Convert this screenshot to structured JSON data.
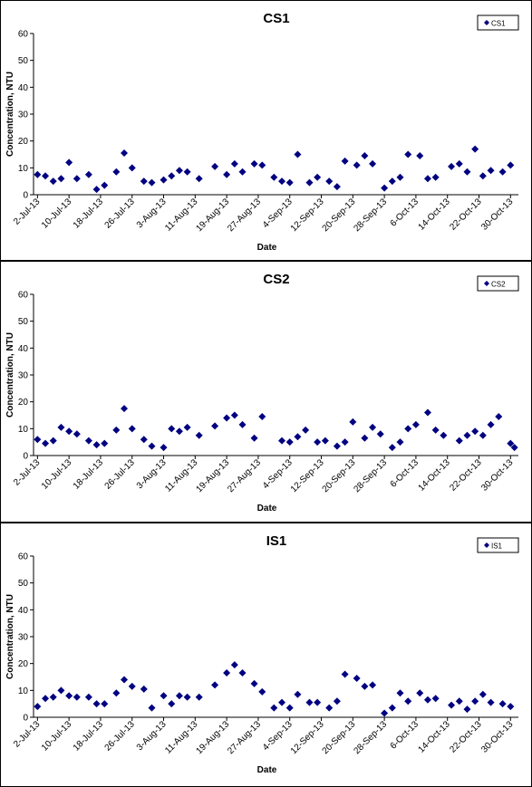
{
  "chart_data": [
    {
      "type": "scatter",
      "title": "CS1",
      "x_label": "Date",
      "y_label": "Concentration, NTU",
      "legend": "upper right",
      "grid": false,
      "x": [
        "2013-07-02",
        "2013-07-04",
        "2013-07-06",
        "2013-07-08",
        "2013-07-10",
        "2013-07-12",
        "2013-07-15",
        "2013-07-17",
        "2013-07-19",
        "2013-07-22",
        "2013-07-24",
        "2013-07-26",
        "2013-07-29",
        "2013-07-31",
        "2013-08-03",
        "2013-08-05",
        "2013-08-07",
        "2013-08-09",
        "2013-08-12",
        "2013-08-16",
        "2013-08-19",
        "2013-08-21",
        "2013-08-23",
        "2013-08-26",
        "2013-08-28",
        "2013-08-31",
        "2013-09-02",
        "2013-09-04",
        "2013-09-06",
        "2013-09-09",
        "2013-09-11",
        "2013-09-14",
        "2013-09-16",
        "2013-09-18",
        "2013-09-21",
        "2013-09-23",
        "2013-09-25",
        "2013-09-28",
        "2013-09-30",
        "2013-10-02",
        "2013-10-04",
        "2013-10-07",
        "2013-10-09",
        "2013-10-11",
        "2013-10-15",
        "2013-10-17",
        "2013-10-19",
        "2013-10-21",
        "2013-10-23",
        "2013-10-25",
        "2013-10-28",
        "2013-10-30"
      ],
      "series": [
        {
          "name": "CS1",
          "color": "#000080",
          "values": [
            7.5,
            7,
            5,
            6,
            12,
            6,
            7.5,
            2,
            3.5,
            8.5,
            15.5,
            10,
            5,
            4.5,
            5.5,
            7,
            9,
            8.5,
            6,
            10.5,
            7.5,
            11.5,
            8.5,
            11.5,
            11,
            6.5,
            5,
            4.5,
            15,
            4.5,
            6.5,
            5,
            3,
            12.5,
            11,
            14.5,
            11.5,
            2.5,
            5,
            6.5,
            15,
            14.5,
            6,
            6.5,
            10.5,
            11.5,
            8.5,
            17,
            7,
            9,
            8.5,
            11
          ]
        }
      ],
      "xlim": [
        "2013-07-01",
        "2013-11-01"
      ],
      "xticks": [
        {
          "value": "2013-07-02",
          "label": "2-Jul-13"
        },
        {
          "value": "2013-07-10",
          "label": "10-Jul-13"
        },
        {
          "value": "2013-07-18",
          "label": "18-Jul-13"
        },
        {
          "value": "2013-07-26",
          "label": "26-Jul-13"
        },
        {
          "value": "2013-08-03",
          "label": "3-Aug-13"
        },
        {
          "value": "2013-08-11",
          "label": "11-Aug-13"
        },
        {
          "value": "2013-08-19",
          "label": "19-Aug-13"
        },
        {
          "value": "2013-08-27",
          "label": "27-Aug-13"
        },
        {
          "value": "2013-09-04",
          "label": "4-Sep-13"
        },
        {
          "value": "2013-09-12",
          "label": "12-Sep-13"
        },
        {
          "value": "2013-09-20",
          "label": "20-Sep-13"
        },
        {
          "value": "2013-09-28",
          "label": "28-Sep-13"
        },
        {
          "value": "2013-10-06",
          "label": "6-Oct-13"
        },
        {
          "value": "2013-10-14",
          "label": "14-Oct-13"
        },
        {
          "value": "2013-10-22",
          "label": "22-Oct-13"
        },
        {
          "value": "2013-10-30",
          "label": "30-Oct-13"
        }
      ],
      "ylim": [
        0,
        60
      ],
      "yticks": [
        0,
        10,
        20,
        30,
        40,
        50,
        60
      ]
    },
    {
      "type": "scatter",
      "title": "CS2",
      "x_label": "Date",
      "y_label": "Concentration, NTU",
      "legend": "upper right",
      "grid": false,
      "x": [
        "2013-07-02",
        "2013-07-04",
        "2013-07-06",
        "2013-07-08",
        "2013-07-10",
        "2013-07-12",
        "2013-07-15",
        "2013-07-17",
        "2013-07-19",
        "2013-07-22",
        "2013-07-24",
        "2013-07-26",
        "2013-07-29",
        "2013-07-31",
        "2013-08-03",
        "2013-08-05",
        "2013-08-07",
        "2013-08-09",
        "2013-08-12",
        "2013-08-16",
        "2013-08-19",
        "2013-08-21",
        "2013-08-23",
        "2013-08-26",
        "2013-08-28",
        "2013-09-02",
        "2013-09-04",
        "2013-09-06",
        "2013-09-08",
        "2013-09-11",
        "2013-09-13",
        "2013-09-16",
        "2013-09-18",
        "2013-09-20",
        "2013-09-23",
        "2013-09-25",
        "2013-09-27",
        "2013-09-30",
        "2013-10-02",
        "2013-10-04",
        "2013-10-06",
        "2013-10-09",
        "2013-10-11",
        "2013-10-13",
        "2013-10-17",
        "2013-10-19",
        "2013-10-21",
        "2013-10-23",
        "2013-10-25",
        "2013-10-27",
        "2013-10-30",
        "2013-10-31"
      ],
      "series": [
        {
          "name": "CS2",
          "color": "#000080",
          "values": [
            6,
            4.5,
            5.5,
            10.5,
            9,
            8,
            5.5,
            4,
            4.5,
            9.5,
            17.5,
            10,
            6,
            3.5,
            3,
            10,
            9,
            10.5,
            7.5,
            11,
            14,
            15,
            11.5,
            6.5,
            14.5,
            5.5,
            5,
            7,
            9.5,
            5,
            5.5,
            3.5,
            5,
            12.5,
            6.5,
            10.5,
            8,
            3,
            5,
            10,
            11.5,
            16,
            9.5,
            7.5,
            5.5,
            7.5,
            9,
            7.5,
            11.5,
            14.5,
            4.5,
            3
          ]
        }
      ],
      "xlim": [
        "2013-07-01",
        "2013-11-01"
      ],
      "xticks": [
        {
          "value": "2013-07-02",
          "label": "2-Jul-13"
        },
        {
          "value": "2013-07-10",
          "label": "10-Jul-13"
        },
        {
          "value": "2013-07-18",
          "label": "18-Jul-13"
        },
        {
          "value": "2013-07-26",
          "label": "26-Jul-13"
        },
        {
          "value": "2013-08-03",
          "label": "3-Aug-13"
        },
        {
          "value": "2013-08-11",
          "label": "11-Aug-13"
        },
        {
          "value": "2013-08-19",
          "label": "19-Aug-13"
        },
        {
          "value": "2013-08-27",
          "label": "27-Aug-13"
        },
        {
          "value": "2013-09-04",
          "label": "4-Sep-13"
        },
        {
          "value": "2013-09-12",
          "label": "12-Sep-13"
        },
        {
          "value": "2013-09-20",
          "label": "20-Sep-13"
        },
        {
          "value": "2013-09-28",
          "label": "28-Sep-13"
        },
        {
          "value": "2013-10-06",
          "label": "6-Oct-13"
        },
        {
          "value": "2013-10-14",
          "label": "14-Oct-13"
        },
        {
          "value": "2013-10-22",
          "label": "22-Oct-13"
        },
        {
          "value": "2013-10-30",
          "label": "30-Oct-13"
        }
      ],
      "ylim": [
        0,
        60
      ],
      "yticks": [
        0,
        10,
        20,
        30,
        40,
        50,
        60
      ]
    },
    {
      "type": "scatter",
      "title": "IS1",
      "x_label": "Date",
      "y_label": "Concentration, NTU",
      "legend": "upper right",
      "grid": false,
      "x": [
        "2013-07-02",
        "2013-07-04",
        "2013-07-06",
        "2013-07-08",
        "2013-07-10",
        "2013-07-12",
        "2013-07-15",
        "2013-07-17",
        "2013-07-19",
        "2013-07-22",
        "2013-07-24",
        "2013-07-26",
        "2013-07-29",
        "2013-07-31",
        "2013-08-03",
        "2013-08-05",
        "2013-08-07",
        "2013-08-09",
        "2013-08-12",
        "2013-08-16",
        "2013-08-19",
        "2013-08-21",
        "2013-08-23",
        "2013-08-26",
        "2013-08-28",
        "2013-08-31",
        "2013-09-02",
        "2013-09-04",
        "2013-09-06",
        "2013-09-09",
        "2013-09-11",
        "2013-09-14",
        "2013-09-16",
        "2013-09-18",
        "2013-09-21",
        "2013-09-23",
        "2013-09-25",
        "2013-09-28",
        "2013-09-30",
        "2013-10-02",
        "2013-10-04",
        "2013-10-07",
        "2013-10-09",
        "2013-10-11",
        "2013-10-15",
        "2013-10-17",
        "2013-10-19",
        "2013-10-21",
        "2013-10-23",
        "2013-10-25",
        "2013-10-28",
        "2013-10-30"
      ],
      "series": [
        {
          "name": "IS1",
          "color": "#000080",
          "values": [
            4,
            7,
            7.5,
            10,
            8,
            7.5,
            7.5,
            5,
            5,
            9,
            14,
            11.5,
            10.5,
            3.5,
            8,
            5,
            8,
            7.5,
            7.5,
            12,
            16.5,
            19.5,
            16.5,
            12.5,
            9.5,
            3.5,
            5.5,
            3.5,
            8.5,
            5.5,
            5.5,
            3.5,
            6,
            16,
            14.5,
            11.5,
            12,
            1.5,
            3.5,
            9,
            6,
            9,
            6.5,
            7,
            4.5,
            6,
            3,
            6,
            8.5,
            5.5,
            5,
            4
          ]
        }
      ],
      "xlim": [
        "2013-07-01",
        "2013-11-01"
      ],
      "xticks": [
        {
          "value": "2013-07-02",
          "label": "2-Jul-13"
        },
        {
          "value": "2013-07-10",
          "label": "10-Jul-13"
        },
        {
          "value": "2013-07-18",
          "label": "18-Jul-13"
        },
        {
          "value": "2013-07-26",
          "label": "26-Jul-13"
        },
        {
          "value": "2013-08-03",
          "label": "3-Aug-13"
        },
        {
          "value": "2013-08-11",
          "label": "11-Aug-13"
        },
        {
          "value": "2013-08-19",
          "label": "19-Aug-13"
        },
        {
          "value": "2013-08-27",
          "label": "27-Aug-13"
        },
        {
          "value": "2013-09-04",
          "label": "4-Sep-13"
        },
        {
          "value": "2013-09-12",
          "label": "12-Sep-13"
        },
        {
          "value": "2013-09-20",
          "label": "20-Sep-13"
        },
        {
          "value": "2013-09-28",
          "label": "28-Sep-13"
        },
        {
          "value": "2013-10-06",
          "label": "6-Oct-13"
        },
        {
          "value": "2013-10-14",
          "label": "14-Oct-13"
        },
        {
          "value": "2013-10-22",
          "label": "22-Oct-13"
        },
        {
          "value": "2013-10-30",
          "label": "30-Oct-13"
        }
      ],
      "ylim": [
        0,
        60
      ],
      "yticks": [
        0,
        10,
        20,
        30,
        40,
        50,
        60
      ]
    }
  ]
}
